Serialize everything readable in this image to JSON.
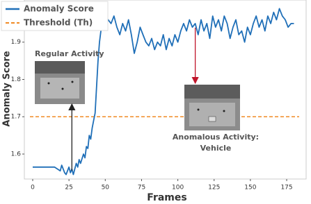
{
  "chart_data": {
    "type": "line",
    "x_label": "Frames",
    "y_label": "Anomaly Score",
    "x": [
      0,
      3,
      6,
      9,
      12,
      15,
      17,
      19,
      20,
      22,
      23,
      25,
      26,
      27,
      28,
      30,
      31,
      32,
      33,
      35,
      36,
      37,
      38,
      39,
      40,
      41,
      42,
      43,
      44,
      45,
      46,
      47,
      48,
      50,
      52,
      54,
      56,
      58,
      60,
      62,
      64,
      66,
      68,
      70,
      72,
      74,
      76,
      78,
      80,
      82,
      84,
      86,
      88,
      90,
      92,
      94,
      96,
      98,
      100,
      102,
      104,
      106,
      108,
      110,
      112,
      114,
      116,
      118,
      120,
      122,
      124,
      126,
      128,
      130,
      132,
      134,
      136,
      138,
      140,
      142,
      144,
      146,
      148,
      150,
      152,
      154,
      156,
      158,
      160,
      162,
      164,
      166,
      168,
      170,
      172,
      174,
      176,
      178,
      180
    ],
    "series": [
      {
        "name": "Anomaly Score",
        "color": "#1f6fb8",
        "values": [
          1.565,
          1.565,
          1.565,
          1.565,
          1.565,
          1.565,
          1.56,
          1.555,
          1.57,
          1.55,
          1.545,
          1.565,
          1.55,
          1.56,
          1.545,
          1.575,
          1.565,
          1.585,
          1.575,
          1.6,
          1.59,
          1.62,
          1.615,
          1.65,
          1.64,
          1.67,
          1.69,
          1.71,
          1.78,
          1.85,
          1.9,
          1.93,
          1.95,
          1.94,
          1.96,
          1.95,
          1.97,
          1.94,
          1.92,
          1.95,
          1.93,
          1.96,
          1.92,
          1.87,
          1.9,
          1.94,
          1.92,
          1.9,
          1.89,
          1.91,
          1.88,
          1.9,
          1.89,
          1.92,
          1.88,
          1.91,
          1.89,
          1.92,
          1.9,
          1.93,
          1.95,
          1.93,
          1.96,
          1.94,
          1.95,
          1.92,
          1.96,
          1.93,
          1.95,
          1.91,
          1.97,
          1.94,
          1.96,
          1.93,
          1.97,
          1.95,
          1.91,
          1.94,
          1.96,
          1.92,
          1.93,
          1.9,
          1.94,
          1.92,
          1.95,
          1.97,
          1.94,
          1.96,
          1.93,
          1.97,
          1.95,
          1.98,
          1.96,
          1.99,
          1.97,
          1.96,
          1.94,
          1.95,
          1.95
        ]
      }
    ],
    "threshold": {
      "name": "Threshold (Th)",
      "value": 1.7,
      "color": "#f08a24"
    },
    "annotations": [
      {
        "text": "Regular Activity",
        "x": 27,
        "y": 1.55
      },
      {
        "text": [
          "Anomalous Activity:",
          "Vehicle"
        ],
        "x": 112,
        "y": 1.95
      }
    ],
    "xlim": [
      -5.75,
      188.4
    ],
    "xticks": [
      0,
      25,
      50,
      75,
      100,
      125,
      150,
      175
    ],
    "ylim": [
      1.533,
      2.013
    ],
    "yticks": [
      1.6,
      1.7,
      1.8,
      1.9
    ],
    "legend": "upper left"
  }
}
